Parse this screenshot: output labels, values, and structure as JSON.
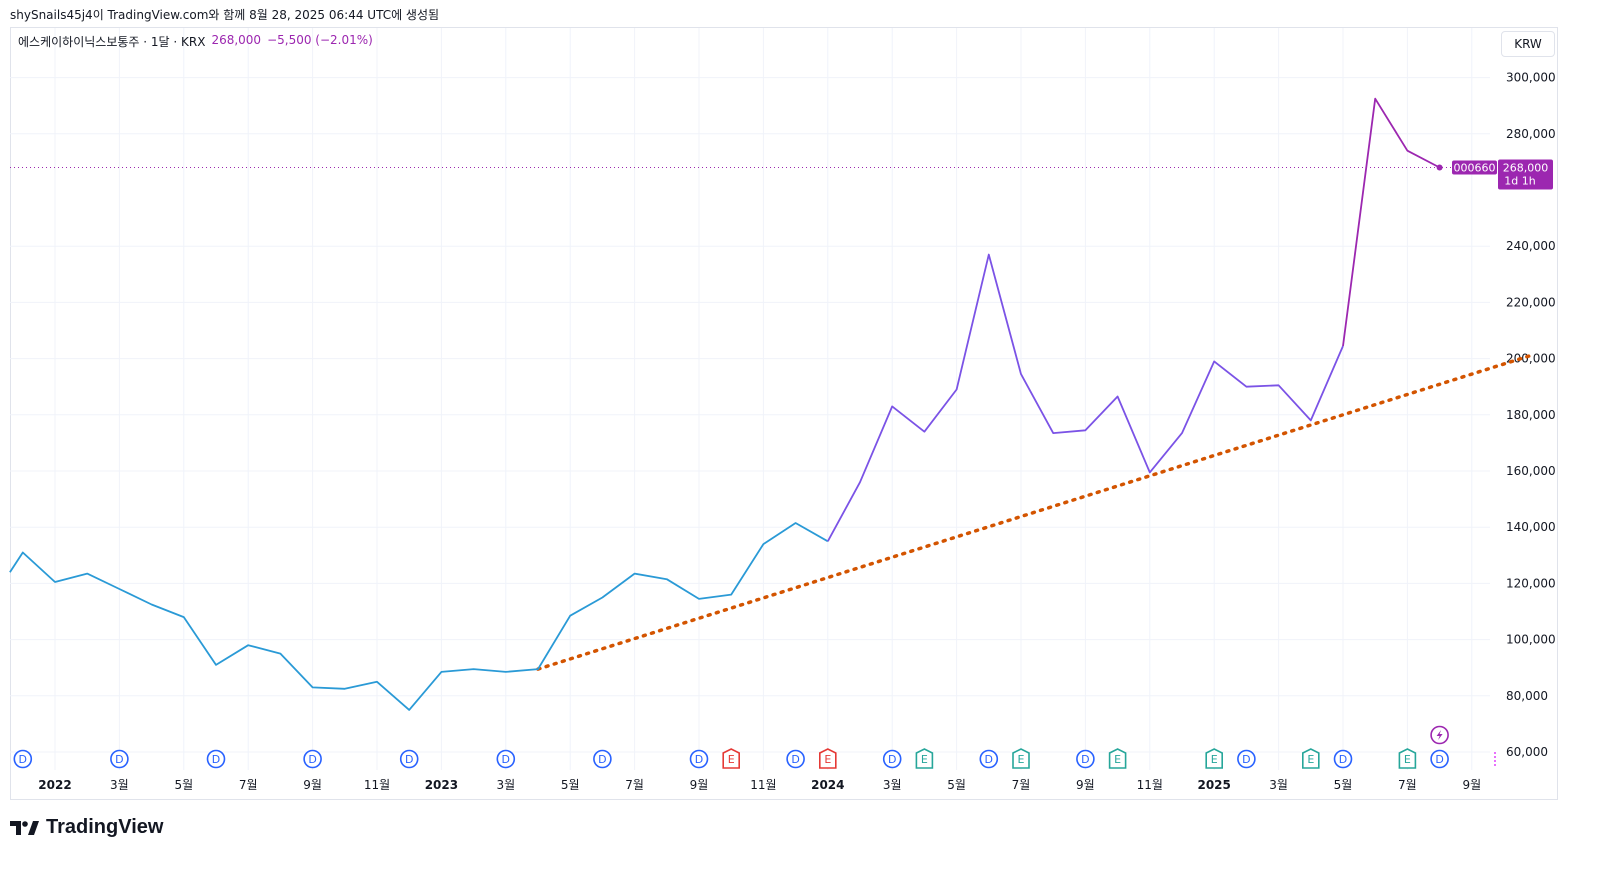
{
  "attribution": "shySnails45j4이 TradingView.com와 함께 8월 28, 2025 06:44 UTC에 생성됨",
  "legend": {
    "symbol_text": "에스케이하이닉스보통주 · 1달 · KRX",
    "price": "268,000",
    "change": "−5,500 (−2.01%)"
  },
  "currency": "KRW",
  "brand": "TradingView",
  "price_tag": {
    "ticker": "000660",
    "price": "268,000",
    "countdown": "1d 1h"
  },
  "colors": {
    "blue_series": "#2a9ad6",
    "purple_series": "#9c27b0",
    "trend": "#d35400",
    "dividend": "#2962ff",
    "earnings_red": "#e53935",
    "earnings_green": "#26a69a"
  },
  "chart_data": {
    "type": "line",
    "x_unit": "month",
    "y_ticks": [
      "300,000",
      "280,000",
      "240,000",
      "220,000",
      "200,000",
      "180,000",
      "160,000",
      "140,000",
      "120,000",
      "100,000",
      "80,000",
      "60,000"
    ],
    "x_ticks": [
      {
        "month": 0,
        "label": "2022",
        "bold": true
      },
      {
        "month": 2,
        "label": "3월"
      },
      {
        "month": 4,
        "label": "5월"
      },
      {
        "month": 6,
        "label": "7월"
      },
      {
        "month": 8,
        "label": "9월"
      },
      {
        "month": 10,
        "label": "11월"
      },
      {
        "month": 12,
        "label": "2023",
        "bold": true
      },
      {
        "month": 14,
        "label": "3월"
      },
      {
        "month": 16,
        "label": "5월"
      },
      {
        "month": 18,
        "label": "7월"
      },
      {
        "month": 20,
        "label": "9월"
      },
      {
        "month": 22,
        "label": "11월"
      },
      {
        "month": 24,
        "label": "2024",
        "bold": true
      },
      {
        "month": 26,
        "label": "3월"
      },
      {
        "month": 28,
        "label": "5월"
      },
      {
        "month": 30,
        "label": "7월"
      },
      {
        "month": 32,
        "label": "9월"
      },
      {
        "month": 34,
        "label": "11월"
      },
      {
        "month": 36,
        "label": "2025",
        "bold": true
      },
      {
        "month": 38,
        "label": "3월"
      },
      {
        "month": 40,
        "label": "5월"
      },
      {
        "month": 42,
        "label": "7월"
      },
      {
        "month": 44,
        "label": "9월"
      }
    ],
    "series": [
      {
        "color": "#2a9ad6",
        "points": [
          [
            -1.4,
            124000
          ],
          [
            -1,
            131000
          ],
          [
            0,
            120500
          ],
          [
            1,
            123500
          ],
          [
            2,
            118000
          ],
          [
            3,
            112500
          ],
          [
            4,
            108000
          ],
          [
            5,
            91000
          ],
          [
            6,
            98000
          ],
          [
            7,
            95000
          ],
          [
            8,
            83000
          ],
          [
            9,
            82500
          ],
          [
            10,
            85000
          ],
          [
            11,
            75000
          ],
          [
            12,
            88500
          ],
          [
            13,
            89500
          ],
          [
            14,
            88500
          ],
          [
            15,
            89500
          ],
          [
            16,
            108500
          ],
          [
            17,
            115000
          ],
          [
            18,
            123500
          ],
          [
            19,
            121500
          ],
          [
            20,
            114500
          ],
          [
            21,
            116000
          ],
          [
            22,
            134000
          ],
          [
            23,
            141500
          ],
          [
            24,
            135000
          ]
        ]
      },
      {
        "color": "#7b53e6",
        "points": [
          [
            24,
            135000
          ],
          [
            25,
            156000
          ],
          [
            26,
            183000
          ],
          [
            27,
            174000
          ],
          [
            28,
            189000
          ],
          [
            29,
            237000
          ],
          [
            30,
            194500
          ],
          [
            31,
            173500
          ],
          [
            32,
            174500
          ],
          [
            33,
            186500
          ],
          [
            34,
            159500
          ],
          [
            35,
            173500
          ],
          [
            36,
            199000
          ],
          [
            37,
            190000
          ],
          [
            38,
            190500
          ],
          [
            39,
            178000
          ],
          [
            40,
            204500
          ]
        ]
      },
      {
        "color": "#9c27b0",
        "points": [
          [
            40,
            204500
          ],
          [
            41,
            292500
          ],
          [
            42,
            274000
          ],
          [
            43,
            268000
          ]
        ]
      }
    ],
    "trendline": {
      "from": [
        15,
        89500
      ],
      "to": [
        45.8,
        201000
      ]
    },
    "last_price": 268000,
    "events": [
      {
        "month": -1,
        "label": "D",
        "kind": "dividend"
      },
      {
        "month": 2,
        "label": "D",
        "kind": "dividend"
      },
      {
        "month": 5,
        "label": "D",
        "kind": "dividend"
      },
      {
        "month": 8,
        "label": "D",
        "kind": "dividend"
      },
      {
        "month": 11,
        "label": "D",
        "kind": "dividend"
      },
      {
        "month": 14,
        "label": "D",
        "kind": "dividend"
      },
      {
        "month": 17,
        "label": "D",
        "kind": "dividend"
      },
      {
        "month": 20,
        "label": "D",
        "kind": "dividend"
      },
      {
        "month": 21,
        "label": "E",
        "kind": "earnings_red"
      },
      {
        "month": 23,
        "label": "D",
        "kind": "dividend"
      },
      {
        "month": 24,
        "label": "E",
        "kind": "earnings_red"
      },
      {
        "month": 26,
        "label": "D",
        "kind": "dividend"
      },
      {
        "month": 27,
        "label": "E",
        "kind": "earnings_green"
      },
      {
        "month": 29,
        "label": "D",
        "kind": "dividend"
      },
      {
        "month": 30,
        "label": "E",
        "kind": "earnings_green"
      },
      {
        "month": 32,
        "label": "D",
        "kind": "dividend"
      },
      {
        "month": 33,
        "label": "E",
        "kind": "earnings_green"
      },
      {
        "month": 36,
        "label": "E",
        "kind": "earnings_green"
      },
      {
        "month": 37,
        "label": "D",
        "kind": "dividend"
      },
      {
        "month": 39,
        "label": "E",
        "kind": "earnings_green"
      },
      {
        "month": 40,
        "label": "D",
        "kind": "dividend"
      },
      {
        "month": 42,
        "label": "E",
        "kind": "earnings_green"
      },
      {
        "month": 43,
        "label": "D",
        "kind": "dividend"
      }
    ],
    "grid": true
  }
}
